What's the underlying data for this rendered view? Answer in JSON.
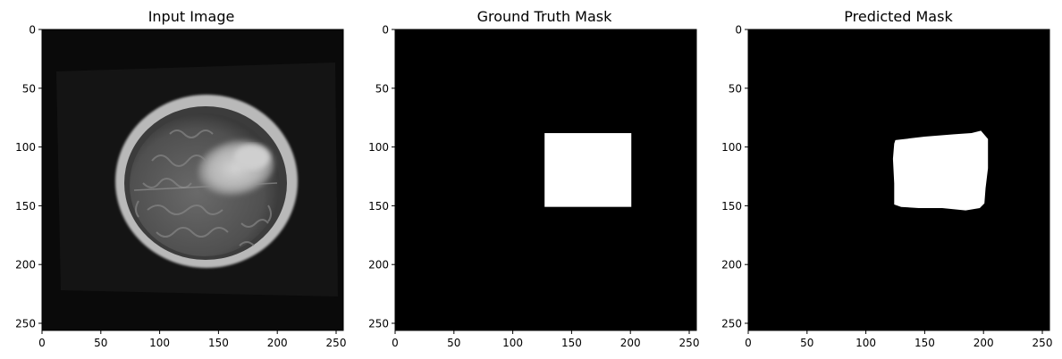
{
  "chart_data": [
    {
      "type": "image",
      "title": "Input Image",
      "content": "brain-mri-axial-slice",
      "xlim": [
        0,
        256
      ],
      "ylim": [
        256,
        0
      ],
      "xticks": [
        0,
        50,
        100,
        150,
        200,
        250
      ],
      "yticks": [
        0,
        50,
        100,
        150,
        200,
        250
      ],
      "colors": {
        "background": "#0a0a0a"
      }
    },
    {
      "type": "image",
      "title": "Ground Truth Mask",
      "content": "binary-mask",
      "xlim": [
        0,
        256
      ],
      "ylim": [
        256,
        0
      ],
      "xticks": [
        0,
        50,
        100,
        150,
        200,
        250
      ],
      "yticks": [
        0,
        50,
        100,
        150,
        200,
        250
      ],
      "colors": {
        "background": "#000000",
        "foreground": "#ffffff"
      },
      "mask_region": {
        "x": [
          127,
          201
        ],
        "y": [
          88,
          151
        ]
      }
    },
    {
      "type": "image",
      "title": "Predicted Mask",
      "content": "binary-mask",
      "xlim": [
        0,
        256
      ],
      "ylim": [
        256,
        0
      ],
      "xticks": [
        0,
        50,
        100,
        150,
        200,
        250
      ],
      "yticks": [
        0,
        50,
        100,
        150,
        200,
        250
      ],
      "colors": {
        "background": "#000000",
        "foreground": "#ffffff"
      },
      "mask_outline": [
        [
          125,
          94
        ],
        [
          150,
          91
        ],
        [
          175,
          89
        ],
        [
          190,
          88
        ],
        [
          198,
          86
        ],
        [
          204,
          93
        ],
        [
          204,
          118
        ],
        [
          202,
          135
        ],
        [
          201,
          148
        ],
        [
          197,
          152
        ],
        [
          185,
          154
        ],
        [
          165,
          152
        ],
        [
          145,
          152
        ],
        [
          130,
          151
        ],
        [
          124,
          149
        ],
        [
          124,
          131
        ],
        [
          123,
          110
        ],
        [
          124,
          97
        ]
      ]
    }
  ]
}
